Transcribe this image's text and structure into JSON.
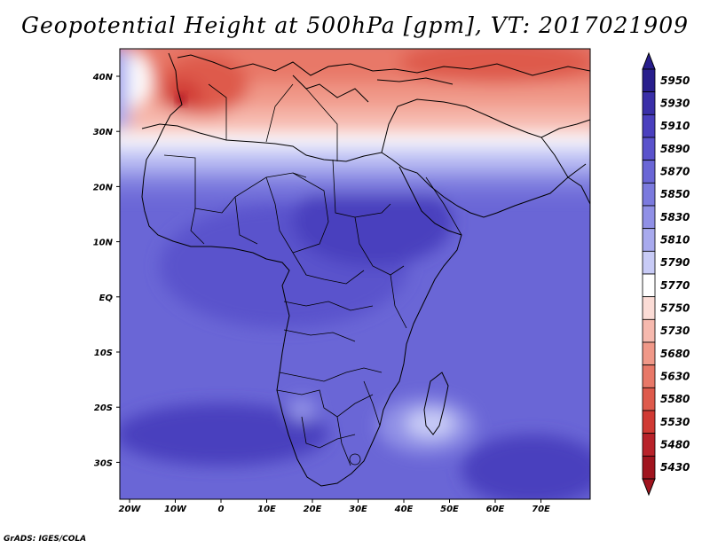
{
  "title": "Geopotential Height at 500hPa [gpm], VT: 2017021909",
  "credit": "GrADS: IGES/COLA",
  "map": {
    "lon_labels": [
      "20W",
      "10W",
      "0",
      "10E",
      "20E",
      "30E",
      "40E",
      "50E",
      "60E",
      "70E"
    ],
    "lat_labels": [
      "40N",
      "30N",
      "20N",
      "10N",
      "EQ",
      "10S",
      "20S",
      "30S"
    ],
    "lon_range": [
      -22,
      80
    ],
    "lat_range": [
      -37,
      45
    ]
  },
  "colorbar": {
    "levels": [
      "5950",
      "5930",
      "5910",
      "5890",
      "5870",
      "5850",
      "5830",
      "5810",
      "5790",
      "5770",
      "5750",
      "5730",
      "5680",
      "5630",
      "5580",
      "5530",
      "5480",
      "5430"
    ],
    "colors": [
      "#281e8c",
      "#3a2fa8",
      "#4a3fbe",
      "#5a52cc",
      "#6a66d6",
      "#7b7ade",
      "#9090e6",
      "#a8aaee",
      "#c8cbf6",
      "#ffffff",
      "#fbdcd6",
      "#f6b9ae",
      "#f09888",
      "#e87868",
      "#de5a4c",
      "#d03a34",
      "#b8222a",
      "#a0141e"
    ],
    "top_arrow_color": "#281e8c",
    "bottom_arrow_color": "#a0141e"
  }
}
